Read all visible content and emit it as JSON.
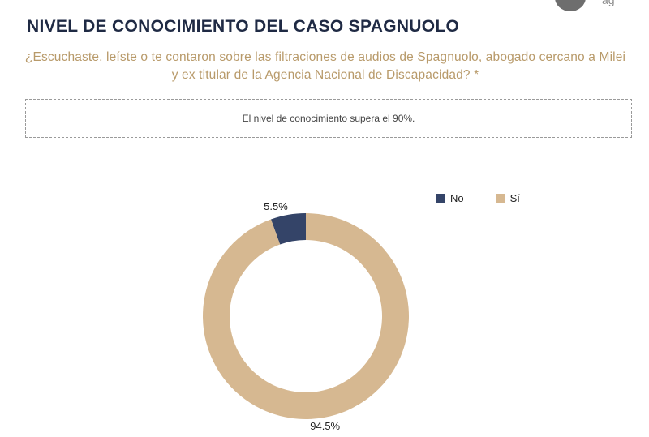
{
  "header": {
    "title": "NIVEL DE CONOCIMIENTO DEL CASO SPAGNUOLO",
    "question": "¿Escuchaste, leíste o te contaron sobre las filtraciones de audios de Spagnuolo, abogado cercano a Milei y ex titular de la Agencia Nacional de Discapacidad? *"
  },
  "note": {
    "text": "El nivel de conocimiento supera el 90%."
  },
  "colors": {
    "no": "#344468",
    "si": "#d6b891"
  },
  "chart_data": {
    "type": "pie",
    "donut": true,
    "title": "",
    "legend_position": "top-right",
    "slices": [
      {
        "name": "No",
        "value": 5.5,
        "label": "5.5%"
      },
      {
        "name": "Sí",
        "value": 94.5,
        "label": "94.5%"
      }
    ]
  }
}
